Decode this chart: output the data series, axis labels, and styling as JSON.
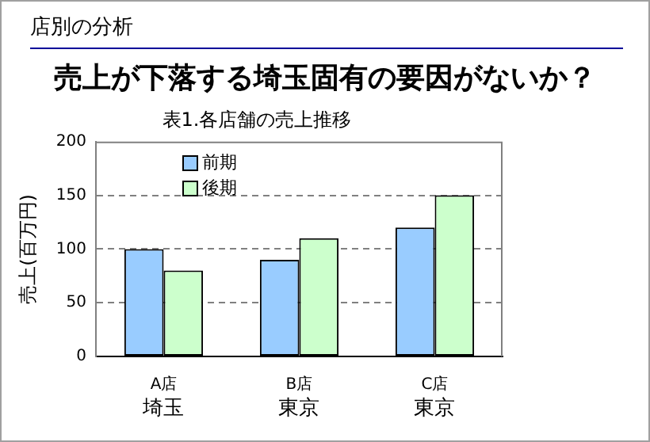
{
  "chart_data": {
    "type": "bar",
    "title": "売上が下落する埼玉固有の要因がないか？",
    "subtitle": "表1.各店舗の売上推移",
    "ylabel": "売上(百万円)",
    "categories": [
      "A店",
      "B店",
      "C店"
    ],
    "series": [
      {
        "name": "前期",
        "color": "#99ccff",
        "values": [
          100,
          90,
          120
        ]
      },
      {
        "name": "後期",
        "color": "#ccffcc",
        "values": [
          80,
          110,
          150
        ]
      }
    ],
    "ylim": [
      0,
      200
    ],
    "yticks": [
      0,
      50,
      100,
      150,
      200
    ],
    "grid": "y",
    "legend": "top left",
    "annotations": [
      "店別の分析",
      "埼玉",
      "東京",
      "東京"
    ]
  }
}
